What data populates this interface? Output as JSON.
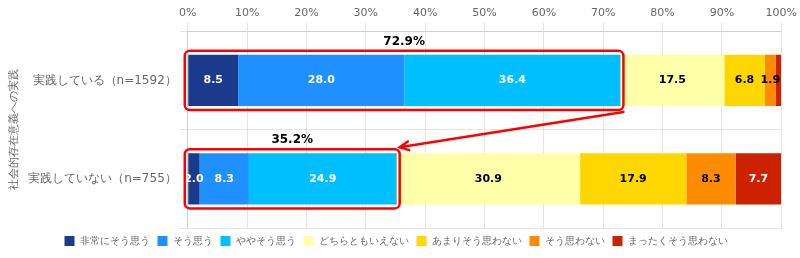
{
  "chart_data": {
    "type": "bar",
    "orientation": "horizontal",
    "stacked": true,
    "categories": [
      "実践している（n=1592）",
      "実践していない（n=755）"
    ],
    "series": [
      {
        "name": "非常にそう思う",
        "color": "#1a3a8c",
        "values": [
          8.5,
          2.0
        ],
        "value_labels": [
          "8.5",
          "2.0"
        ]
      },
      {
        "name": "そう思う",
        "color": "#1e90ff",
        "values": [
          28.0,
          8.3
        ],
        "value_labels": [
          "28.0",
          "8.3"
        ]
      },
      {
        "name": "ややそう思う",
        "color": "#00bfff",
        "values": [
          36.4,
          24.9
        ],
        "value_labels": [
          "36.4",
          "24.9"
        ]
      },
      {
        "name": "どちらともいえない",
        "color": "#ffffaa",
        "values": [
          17.5,
          30.9
        ],
        "value_labels": [
          "17.5",
          "30.9"
        ]
      },
      {
        "name": "あまりそう思わない",
        "color": "#ffd700",
        "values": [
          6.8,
          17.9
        ],
        "value_labels": [
          "6.8",
          "17.9"
        ]
      },
      {
        "name": "そう思わない",
        "color": "#ff8c00",
        "values": [
          1.9,
          8.3
        ],
        "value_labels": [
          "1.9",
          "8.3"
        ]
      },
      {
        "name": "まったくそう思わない",
        "color": "#cc2200",
        "values": [
          0.9,
          7.7
        ],
        "value_labels": [
          null,
          "7.7"
        ]
      }
    ],
    "ylabel": "社会的存在意義への実践",
    "xlim": [
      0,
      100
    ],
    "xticks": [
      {
        "value": 0,
        "label": "0%"
      },
      {
        "value": 10,
        "label": "10%"
      },
      {
        "value": 20,
        "label": "20%"
      },
      {
        "value": 30,
        "label": "30%"
      },
      {
        "value": 40,
        "label": "40%"
      },
      {
        "value": 50,
        "label": "50%"
      },
      {
        "value": 60,
        "label": "60%"
      },
      {
        "value": 70,
        "label": "70%"
      },
      {
        "value": 80,
        "label": "80%"
      },
      {
        "value": 90,
        "label": "90%"
      },
      {
        "value": 100,
        "label": "100%"
      }
    ],
    "annotations": [
      {
        "text": "72.9%",
        "value": 72.9,
        "category": "実践している（n=1592）",
        "color": "red"
      },
      {
        "text": "35.2%",
        "value": 35.2,
        "category": "実践していない（n=755）",
        "color": "red"
      }
    ],
    "data_labels": true,
    "grid": true,
    "legend": "bottom"
  }
}
